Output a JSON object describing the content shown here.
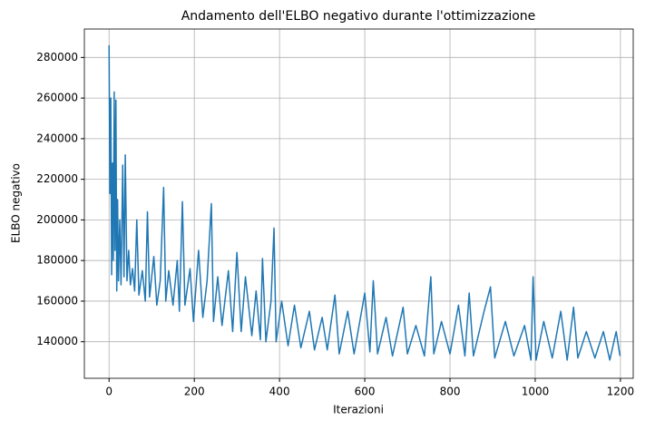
{
  "chart_data": {
    "type": "line",
    "title": "Andamento dell'ELBO negativo durante l'ottimizzazione",
    "xlabel": "Iterazioni",
    "ylabel": "ELBO negativo",
    "color": "#1f77b4",
    "grid": true,
    "xlim": [
      -58,
      1230
    ],
    "ylim": [
      122000,
      294000
    ],
    "xticks": [
      0,
      200,
      400,
      600,
      800,
      1000,
      1200
    ],
    "yticks": [
      140000,
      160000,
      180000,
      200000,
      220000,
      240000,
      260000,
      280000
    ],
    "x": [
      0,
      2,
      4,
      6,
      8,
      10,
      12,
      14,
      16,
      18,
      20,
      22,
      25,
      28,
      32,
      35,
      38,
      42,
      46,
      50,
      55,
      60,
      65,
      70,
      78,
      85,
      90,
      95,
      105,
      112,
      120,
      128,
      133,
      140,
      150,
      160,
      165,
      172,
      178,
      190,
      198,
      210,
      220,
      230,
      240,
      245,
      255,
      265,
      280,
      290,
      300,
      310,
      320,
      335,
      345,
      355,
      360,
      368,
      380,
      387,
      392,
      405,
      420,
      435,
      450,
      470,
      482,
      500,
      512,
      530,
      540,
      560,
      575,
      600,
      612,
      620,
      630,
      650,
      665,
      690,
      700,
      720,
      740,
      755,
      762,
      780,
      800,
      820,
      835,
      845,
      855,
      880,
      895,
      905,
      930,
      950,
      975,
      990,
      995,
      1002,
      1020,
      1040,
      1060,
      1075,
      1090,
      1100,
      1120,
      1140,
      1160,
      1175,
      1190,
      1199
    ],
    "values": [
      286000,
      213000,
      260000,
      173000,
      228000,
      180000,
      263000,
      185000,
      259000,
      165000,
      210000,
      170000,
      200000,
      168000,
      227000,
      172000,
      232000,
      170000,
      185000,
      168000,
      176000,
      165000,
      200000,
      163000,
      175000,
      160000,
      204000,
      162000,
      182000,
      158000,
      170000,
      216000,
      160000,
      175000,
      158000,
      180000,
      155000,
      209000,
      158000,
      176000,
      150000,
      185000,
      152000,
      170000,
      208000,
      150000,
      172000,
      148000,
      175000,
      145000,
      184000,
      145000,
      172000,
      143000,
      165000,
      141000,
      181000,
      140000,
      160000,
      196000,
      140000,
      160000,
      138000,
      158000,
      137000,
      155000,
      136000,
      152000,
      136000,
      163000,
      134000,
      155000,
      134000,
      164000,
      135000,
      170000,
      134000,
      152000,
      133000,
      157000,
      134000,
      148000,
      133000,
      172000,
      134000,
      150000,
      134000,
      158000,
      133000,
      164000,
      133000,
      155000,
      167000,
      132000,
      150000,
      133000,
      148000,
      131000,
      172000,
      131000,
      150000,
      132000,
      155000,
      131000,
      157000,
      132000,
      145000,
      132000,
      145000,
      131000,
      145000,
      133000
    ]
  }
}
